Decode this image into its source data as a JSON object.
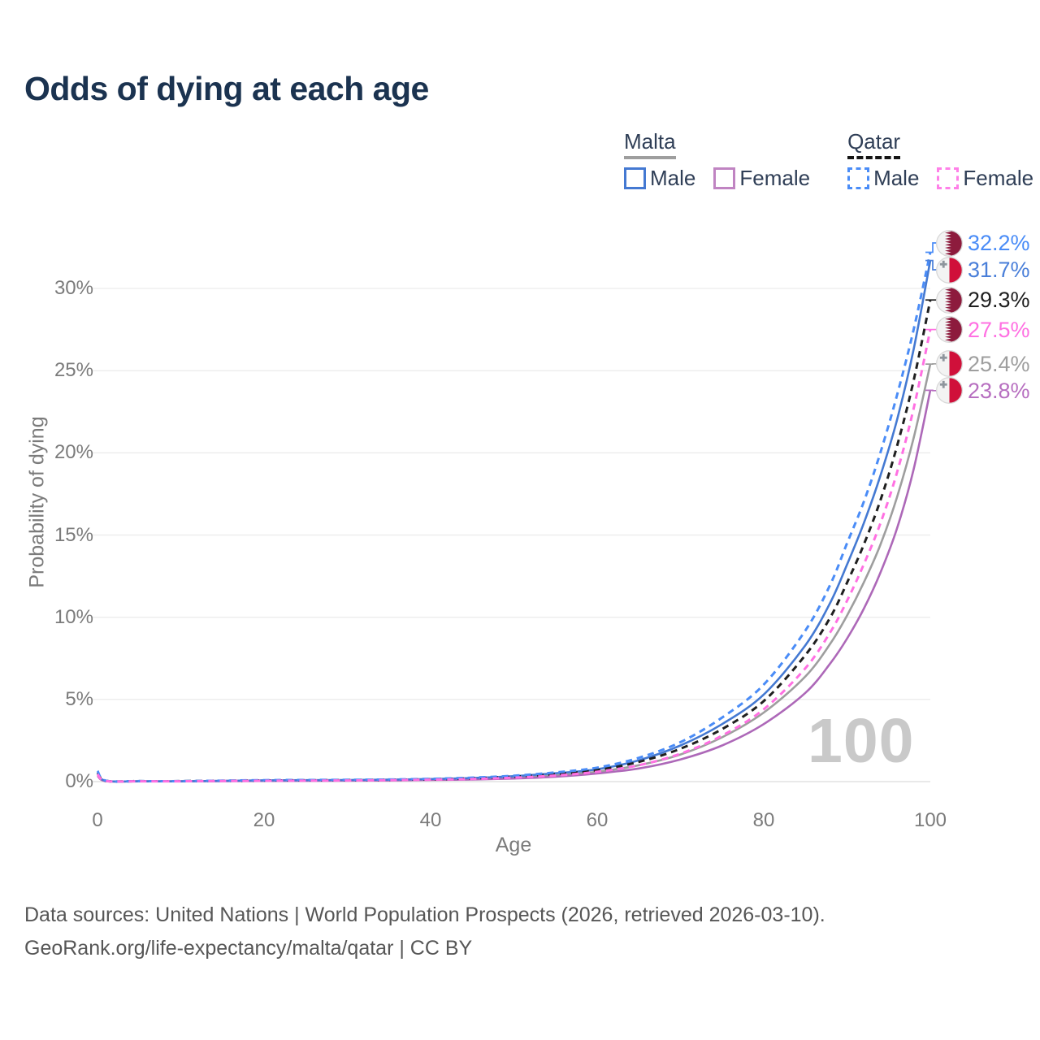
{
  "title": "Odds of dying at each age",
  "legend": {
    "malta": {
      "header": "Malta",
      "male_label": "Male",
      "female_label": "Female",
      "swatch_color": "#9e9e9e",
      "male_color": "#4479d2",
      "female_color": "#c084c2",
      "line_style": "solid"
    },
    "qatar": {
      "header": "Qatar",
      "male_label": "Male",
      "female_label": "Female",
      "swatch_color": "#151515",
      "male_color": "#4a8cf7",
      "female_color": "#ff80e8",
      "line_style": "dashed"
    }
  },
  "chart_data": {
    "type": "line",
    "title": "Odds of dying at each age",
    "xlabel": "Age",
    "ylabel": "Probability of dying",
    "xlim": [
      0,
      100
    ],
    "ylim": [
      0,
      33
    ],
    "x_ticks": [
      0,
      20,
      40,
      60,
      80,
      100
    ],
    "y_ticks": [
      {
        "value": 0,
        "label": "0%"
      },
      {
        "value": 5,
        "label": "5%"
      },
      {
        "value": 10,
        "label": "10%"
      },
      {
        "value": 15,
        "label": "15%"
      },
      {
        "value": 20,
        "label": "20%"
      },
      {
        "value": 25,
        "label": "25%"
      },
      {
        "value": 30,
        "label": "30%"
      }
    ],
    "grid": "horizontal",
    "legend_position": "top-right",
    "age_indicator": "100",
    "ages": [
      0,
      1,
      5,
      10,
      15,
      20,
      25,
      30,
      35,
      40,
      45,
      50,
      55,
      60,
      65,
      70,
      75,
      80,
      85,
      88,
      90,
      92,
      94,
      96,
      98,
      100
    ],
    "series": [
      {
        "name": "Malta",
        "country": "Malta",
        "color": "#9e9e9e",
        "dash": false,
        "values": [
          0.4,
          0.04,
          0.02,
          0.02,
          0.04,
          0.06,
          0.07,
          0.08,
          0.09,
          0.12,
          0.17,
          0.25,
          0.39,
          0.6,
          1.0,
          1.65,
          2.7,
          4.2,
          6.4,
          8.4,
          10.1,
          12.1,
          14.4,
          17.3,
          20.9,
          25.4
        ]
      },
      {
        "name": "Malta Female",
        "country": "Malta",
        "color": "#ad68b8",
        "dash": false,
        "values": [
          0.35,
          0.03,
          0.015,
          0.015,
          0.03,
          0.04,
          0.05,
          0.06,
          0.07,
          0.1,
          0.13,
          0.19,
          0.3,
          0.5,
          0.8,
          1.35,
          2.2,
          3.5,
          5.4,
          7.2,
          8.7,
          10.5,
          12.7,
          15.4,
          19.0,
          23.8
        ]
      },
      {
        "name": "Malta Male",
        "country": "Malta",
        "color": "#4479d2",
        "dash": false,
        "values": [
          0.5,
          0.05,
          0.02,
          0.02,
          0.05,
          0.08,
          0.09,
          0.1,
          0.12,
          0.16,
          0.22,
          0.33,
          0.51,
          0.75,
          1.3,
          2.2,
          3.5,
          5.3,
          8.3,
          10.9,
          13.2,
          15.7,
          18.6,
          22.0,
          26.3,
          31.7
        ]
      },
      {
        "name": "Qatar",
        "country": "Qatar",
        "color": "#1f1f1f",
        "dash": true,
        "values": [
          0.55,
          0.05,
          0.03,
          0.03,
          0.05,
          0.07,
          0.08,
          0.09,
          0.11,
          0.14,
          0.2,
          0.3,
          0.46,
          0.7,
          1.2,
          2.0,
          3.2,
          4.9,
          7.7,
          10.0,
          12.1,
          14.4,
          17.1,
          20.4,
          24.4,
          29.3
        ]
      },
      {
        "name": "Qatar Male",
        "country": "Qatar",
        "color": "#4a8cf7",
        "dash": true,
        "values": [
          0.65,
          0.06,
          0.03,
          0.03,
          0.06,
          0.09,
          0.1,
          0.11,
          0.13,
          0.17,
          0.24,
          0.36,
          0.56,
          0.85,
          1.45,
          2.4,
          3.9,
          5.9,
          9.2,
          12.0,
          14.5,
          17.0,
          20.0,
          23.5,
          27.5,
          32.2
        ]
      },
      {
        "name": "Qatar Female",
        "country": "Qatar",
        "color": "#ff70e2",
        "dash": true,
        "values": [
          0.45,
          0.04,
          0.02,
          0.02,
          0.04,
          0.05,
          0.06,
          0.07,
          0.09,
          0.12,
          0.16,
          0.24,
          0.37,
          0.6,
          1.0,
          1.7,
          2.8,
          4.4,
          6.9,
          9.1,
          11.0,
          13.2,
          15.7,
          18.8,
          22.7,
          27.5
        ]
      }
    ],
    "end_labels": [
      {
        "text": "32.2%",
        "series": "Qatar Male",
        "flag": "qatar",
        "color": "#4a8cf7"
      },
      {
        "text": "31.7%",
        "series": "Malta Male",
        "flag": "malta",
        "color": "#4a7fd9"
      },
      {
        "text": "29.3%",
        "series": "Qatar",
        "flag": "qatar",
        "color": "#1f1f1f"
      },
      {
        "text": "27.5%",
        "series": "Qatar Female",
        "flag": "qatar",
        "color": "#ff70e2"
      },
      {
        "text": "25.4%",
        "series": "Malta",
        "flag": "malta",
        "color": "#9e9e9e"
      },
      {
        "text": "23.8%",
        "series": "Malta Female",
        "flag": "malta",
        "color": "#b76fc0"
      }
    ],
    "flag_colors": {
      "qatar_maroon": "#8d1b3d",
      "malta_red": "#d0103a",
      "flag_ring": "#d8d8d8",
      "malta_cross": "#8e959d"
    }
  },
  "footer": {
    "line1": "Data sources: United Nations | World Population Prospects (2026, retrieved 2026-03-10).",
    "line2": "GeoRank.org/life-expectancy/malta/qatar | CC BY"
  }
}
